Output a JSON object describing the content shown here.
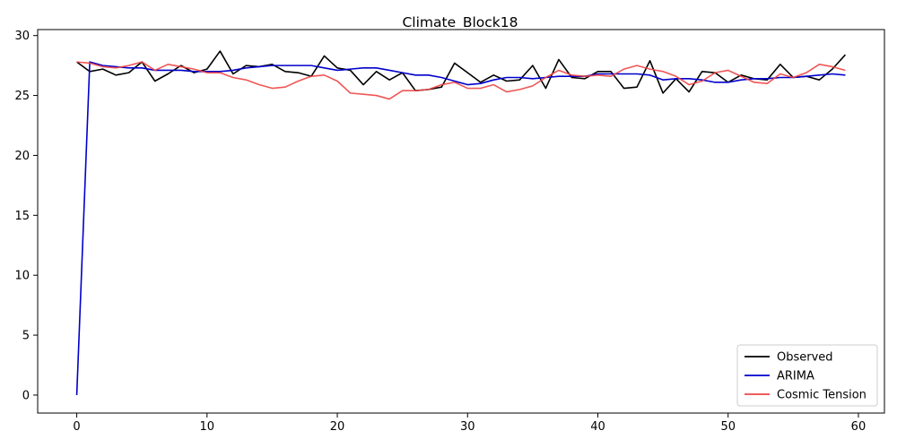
{
  "chart_data": {
    "type": "line",
    "title": "Climate_Block18",
    "xlabel": "",
    "ylabel": "",
    "xlim": [
      -3,
      62
    ],
    "ylim": [
      -1.5,
      30.5
    ],
    "x_ticks": [
      0,
      10,
      20,
      30,
      40,
      50,
      60
    ],
    "y_ticks": [
      0,
      5,
      10,
      15,
      20,
      25,
      30
    ],
    "grid": false,
    "legend_position": "lower-right",
    "series": [
      {
        "name": "Observed",
        "color": "#000000",
        "values": [
          27.8,
          27.0,
          27.2,
          26.7,
          26.9,
          27.8,
          26.2,
          26.8,
          27.5,
          26.9,
          27.2,
          28.7,
          26.8,
          27.5,
          27.4,
          27.6,
          27.0,
          26.9,
          26.6,
          28.3,
          27.3,
          27.1,
          25.9,
          27.0,
          26.3,
          26.9,
          25.4,
          25.5,
          25.7,
          27.7,
          26.9,
          26.1,
          26.7,
          26.2,
          26.3,
          27.5,
          25.6,
          28.0,
          26.5,
          26.4,
          27.0,
          27.0,
          25.6,
          25.7,
          27.9,
          25.2,
          26.4,
          25.3,
          27.0,
          26.9,
          26.1,
          26.7,
          26.4,
          26.3,
          27.6,
          26.5,
          26.6,
          26.3,
          27.2,
          28.4
        ]
      },
      {
        "name": "ARIMA",
        "color": "#0000cc",
        "values": [
          0.0,
          27.8,
          27.5,
          27.4,
          27.3,
          27.3,
          27.1,
          27.1,
          27.1,
          27.0,
          27.0,
          27.0,
          27.1,
          27.3,
          27.4,
          27.5,
          27.5,
          27.5,
          27.5,
          27.3,
          27.1,
          27.2,
          27.3,
          27.3,
          27.1,
          26.9,
          26.7,
          26.7,
          26.5,
          26.2,
          25.9,
          26.0,
          26.3,
          26.5,
          26.5,
          26.4,
          26.5,
          26.6,
          26.6,
          26.6,
          26.8,
          26.8,
          26.8,
          26.8,
          26.7,
          26.3,
          26.4,
          26.4,
          26.3,
          26.1,
          26.1,
          26.3,
          26.4,
          26.4,
          26.5,
          26.5,
          26.6,
          26.7,
          26.8,
          26.7
        ]
      },
      {
        "name": "Cosmic Tension",
        "color": "#ee4444",
        "values": [
          27.8,
          27.7,
          27.4,
          27.3,
          27.5,
          27.8,
          27.1,
          27.6,
          27.4,
          27.2,
          26.9,
          26.9,
          26.5,
          26.3,
          25.9,
          25.6,
          25.7,
          26.2,
          26.6,
          26.7,
          26.2,
          25.2,
          25.1,
          25.0,
          24.7,
          25.4,
          25.4,
          25.5,
          25.9,
          26.1,
          25.6,
          25.6,
          25.9,
          25.3,
          25.5,
          25.8,
          26.5,
          27.1,
          26.7,
          26.6,
          26.7,
          26.6,
          27.2,
          27.5,
          27.2,
          27.0,
          26.6,
          25.9,
          26.2,
          26.9,
          27.1,
          26.6,
          26.1,
          26.0,
          26.8,
          26.5,
          26.9,
          27.6,
          27.4,
          27.1
        ]
      }
    ]
  }
}
